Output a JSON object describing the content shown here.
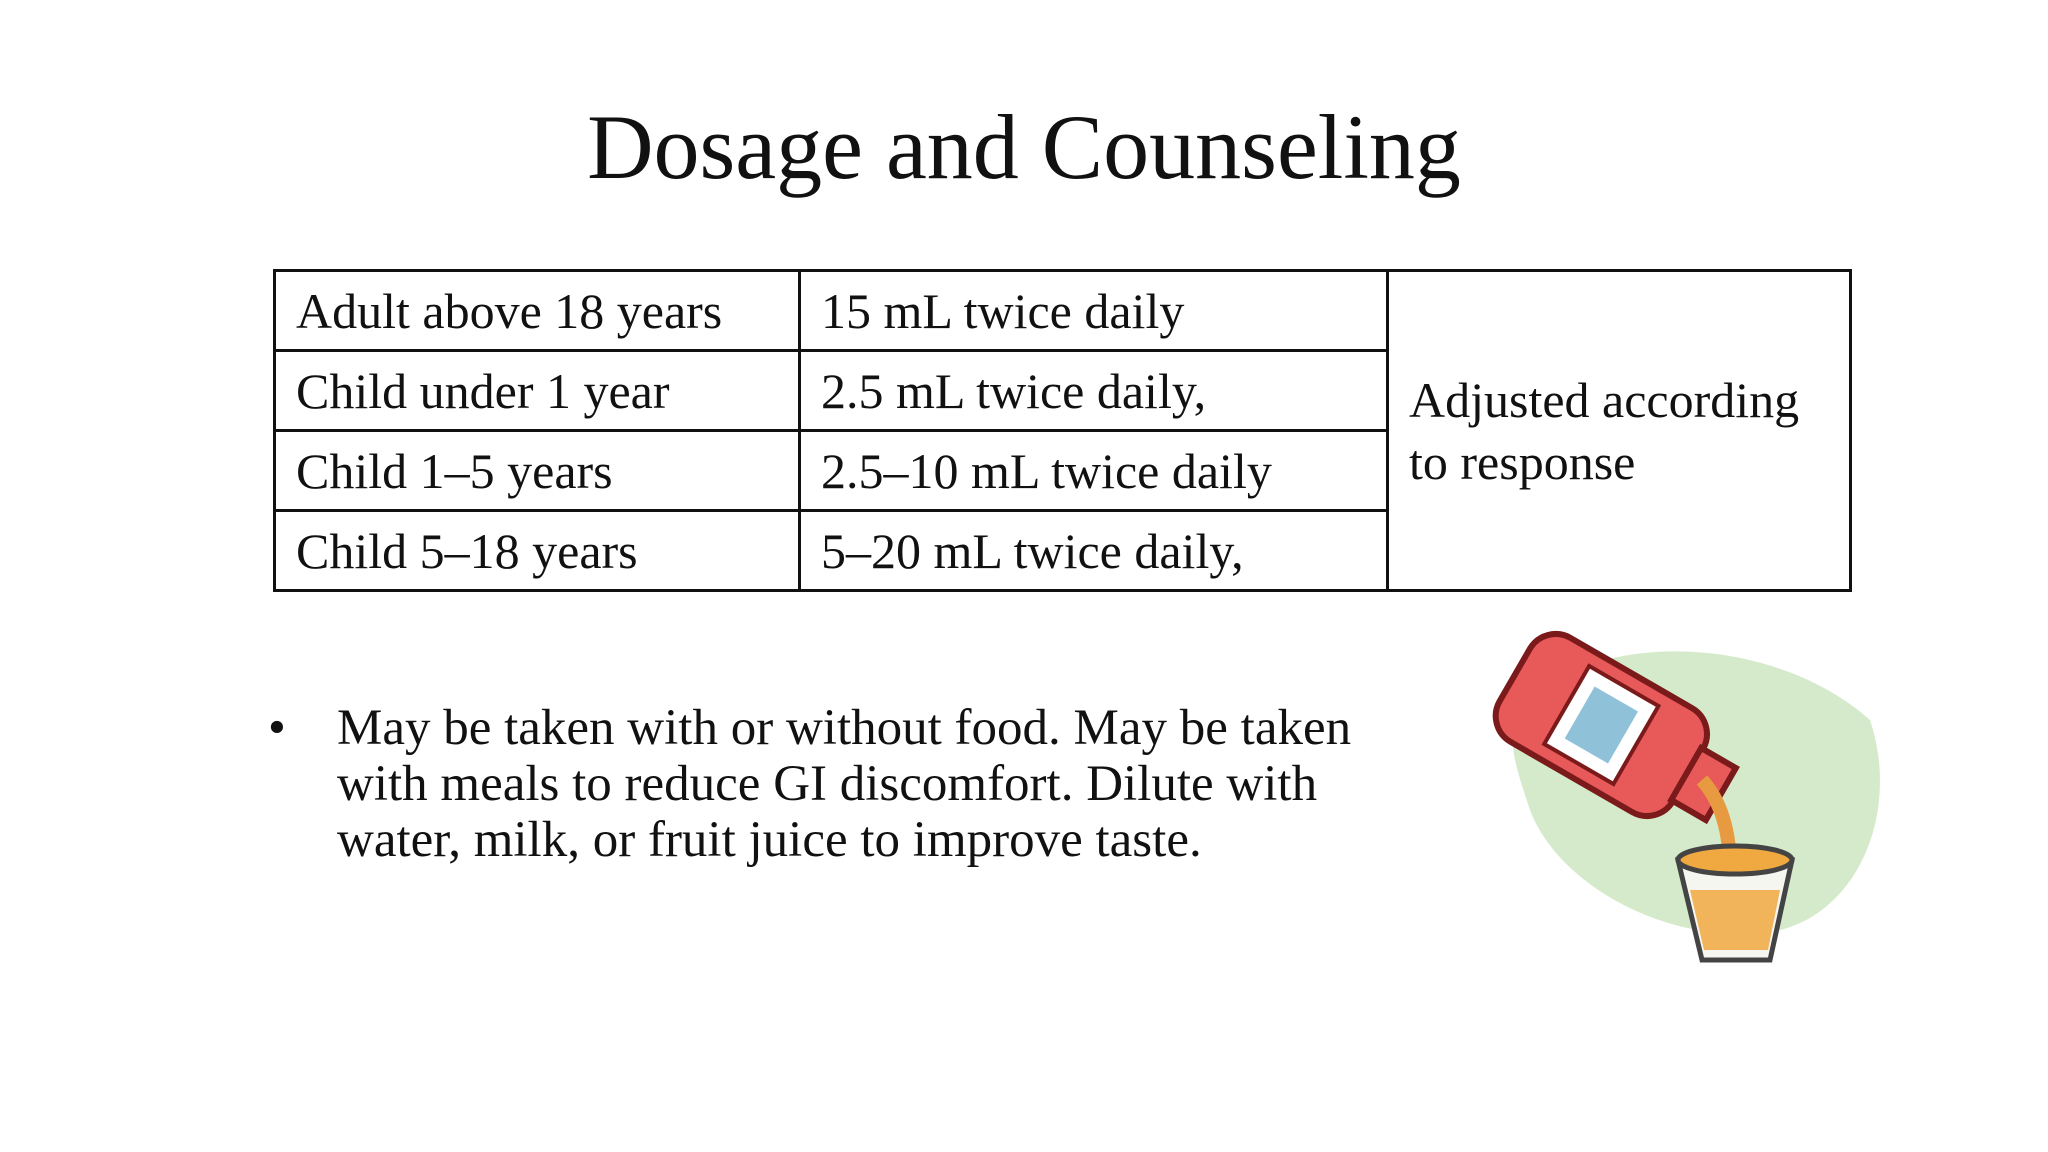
{
  "title": "Dosage and Counseling",
  "table": {
    "rows": [
      [
        "Adult above 18 years",
        "15 mL twice daily"
      ],
      [
        "Child under 1 year",
        "2.5 mL twice daily,"
      ],
      [
        "Child 1–5 years",
        "2.5–10 mL twice daily"
      ],
      [
        "Child 5–18 years",
        "5–20 mL twice daily,"
      ]
    ],
    "note": "Adjusted according to response"
  },
  "bullets": [
    "May be taken with or without food. May be taken with meals to reduce GI discomfort. Dilute with water, milk, or fruit juice to improve taste."
  ]
}
